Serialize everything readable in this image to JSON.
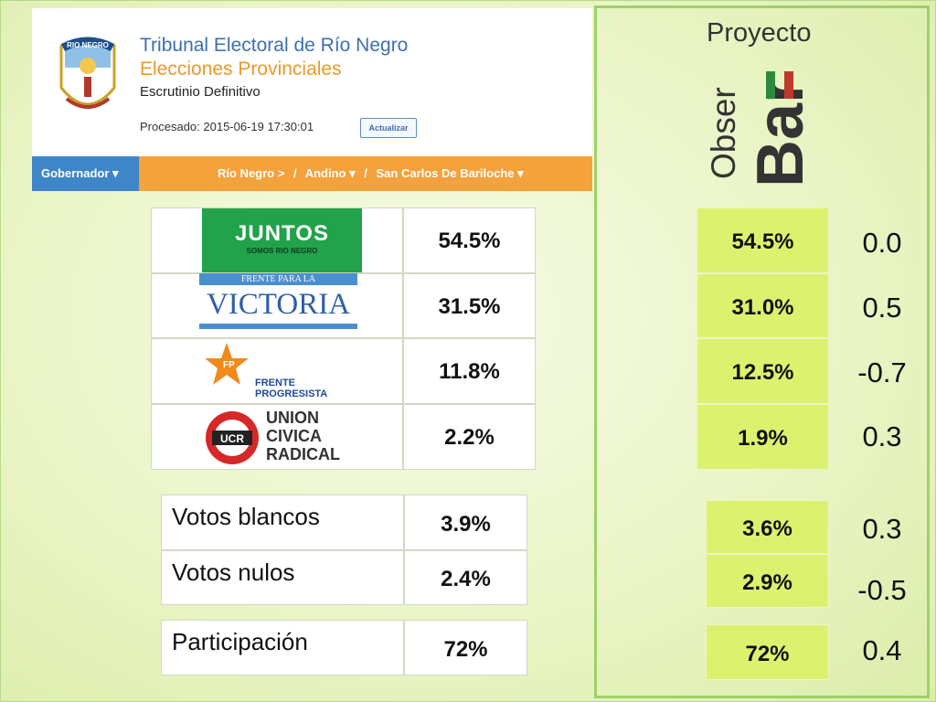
{
  "header": {
    "crest_text": "RIO NEGRO",
    "title": "Tribunal Electoral de Río Negro",
    "subtitle": "Elecciones Provinciales",
    "scrutiny": "Escrutinio Definitivo",
    "processed": "Procesado: 2015-06-19 17:30:01",
    "refresh_label": "Actualizar",
    "nav": {
      "office": "Gobernador ▾",
      "breadcrumbs": [
        "Río Negro >",
        "/",
        "Andino ▾",
        "/",
        "San Carlos De Bariloche ▾"
      ]
    }
  },
  "parties": [
    {
      "logo_text": [
        "JUNTOS",
        "SOMOS RIO NEGRO"
      ],
      "official": "54.5%",
      "observar": "54.5%",
      "difference": "0.0"
    },
    {
      "logo_text": [
        "FRENTE PARA LA",
        "VICTORIA"
      ],
      "official": "31.5%",
      "observar": "31.0%",
      "difference": "0.5"
    },
    {
      "logo_text": [
        "FP",
        "FRENTE",
        "PROGRESISTA"
      ],
      "official": "11.8%",
      "observar": "12.5%",
      "difference": "-0.7"
    },
    {
      "logo_text": [
        "UCR",
        "UNION",
        "CIVICA",
        "RADICAL"
      ],
      "official": "2.2%",
      "observar": "1.9%",
      "difference": "0.3"
    }
  ],
  "summary": [
    {
      "label": "Votos blancos",
      "official": "3.9%",
      "observar": "3.6%",
      "difference": "0.3"
    },
    {
      "label": "Votos nulos",
      "official": "2.4%",
      "observar": "2.9%",
      "difference": "-0.5"
    }
  ],
  "participation": {
    "label": "Participación",
    "official": "72%",
    "observar": "72%",
    "difference": "0.4"
  },
  "brand": {
    "top": "Proyecto",
    "side": "Obser",
    "big": "Bar"
  },
  "colors": {
    "accent_green": "#dcf26f",
    "frame_green": "#9fd16a",
    "nav_orange": "#f5a13c",
    "nav_blue": "#3f86c9",
    "title_blue": "#3e6fb1",
    "subtitle_orange": "#e99a2a"
  }
}
